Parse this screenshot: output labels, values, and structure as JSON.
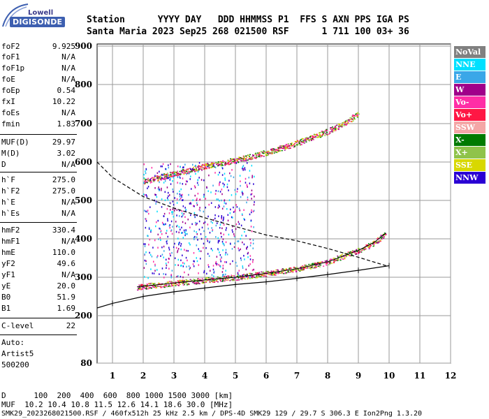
{
  "logo": {
    "brand": "Lowell",
    "product": "DIGISONDE"
  },
  "header": {
    "labels": "Station      YYYY DAY   DDD HHMMSS P1  FFS S AXN PPS IGA PS",
    "values": "Santa Maria 2023 Sep25 268 021500 RSF      1 711 100 03+ 36"
  },
  "params": [
    {
      "name": "foF2",
      "value": "9.925"
    },
    {
      "name": "foF1",
      "value": "N/A"
    },
    {
      "name": "foF1p",
      "value": "N/A"
    },
    {
      "name": "foE",
      "value": "N/A"
    },
    {
      "name": "foEp",
      "value": "0.54"
    },
    {
      "name": "fxI",
      "value": "10.22"
    },
    {
      "name": "foEs",
      "value": "N/A"
    },
    {
      "name": "fmin",
      "value": "1.83"
    },
    {
      "name": "MUF(D)",
      "value": "29.97"
    },
    {
      "name": "M(D)",
      "value": "3.02"
    },
    {
      "name": "D",
      "value": "N/A"
    },
    {
      "name": "h`F",
      "value": "275.0"
    },
    {
      "name": "h`F2",
      "value": "275.0"
    },
    {
      "name": "h`E",
      "value": "N/A"
    },
    {
      "name": "h`Es",
      "value": "N/A"
    },
    {
      "name": "hmF2",
      "value": "330.4"
    },
    {
      "name": "hmF1",
      "value": "N/A"
    },
    {
      "name": "hmE",
      "value": "110.0"
    },
    {
      "name": "yF2",
      "value": "49.6"
    },
    {
      "name": "yF1",
      "value": "N/A"
    },
    {
      "name": "yE",
      "value": "20.0"
    },
    {
      "name": "B0",
      "value": "51.9"
    },
    {
      "name": "B1",
      "value": "1.69"
    },
    {
      "name": "C-level",
      "value": "22"
    }
  ],
  "auto": {
    "line1": "Auto:",
    "line2": "Artist5",
    "line3": "500200"
  },
  "legend": [
    {
      "label": "NoVal",
      "color": "#808080"
    },
    {
      "label": "NNE",
      "color": "#00e0ff"
    },
    {
      "label": "E",
      "color": "#3aa7e8"
    },
    {
      "label": "W",
      "color": "#a0008a"
    },
    {
      "label": "Vo-",
      "color": "#ff2ea6"
    },
    {
      "label": "Vo+",
      "color": "#ff1744"
    },
    {
      "label": "SSW",
      "color": "#f4a6a6"
    },
    {
      "label": "X-",
      "color": "#007a00"
    },
    {
      "label": "X+",
      "color": "#8fc34a"
    },
    {
      "label": "SSE",
      "color": "#d8d800"
    },
    {
      "label": "NNW",
      "color": "#2a00d4"
    }
  ],
  "chart_data": {
    "type": "scatter",
    "title": "",
    "xlabel": "",
    "ylabel": "",
    "x_ticks": [
      "1",
      "2",
      "3",
      "4",
      "5",
      "6",
      "7",
      "8",
      "9",
      "10",
      "11",
      "12"
    ],
    "y_ticks": [
      "80",
      "200",
      "300",
      "400",
      "500",
      "600",
      "700",
      "800",
      "900"
    ],
    "xlim": [
      0.5,
      12
    ],
    "grid": true,
    "traces": [
      {
        "name": "F2 ordinary",
        "x": [
          1.8,
          3,
          4,
          5,
          6,
          7,
          8,
          8.5,
          9,
          9.5,
          9.9
        ],
        "y": [
          275,
          285,
          293,
          300,
          310,
          322,
          340,
          355,
          370,
          390,
          415
        ]
      },
      {
        "name": "F2 second hop",
        "x": [
          2,
          3,
          4,
          5,
          6,
          7,
          8,
          8.5,
          9
        ],
        "y": [
          550,
          570,
          590,
          605,
          625,
          650,
          680,
          700,
          725
        ]
      },
      {
        "name": "virtual height model",
        "x": [
          0.5,
          1,
          2,
          3,
          4,
          5,
          6,
          7,
          8,
          9,
          10
        ],
        "y": [
          220,
          232,
          250,
          262,
          272,
          281,
          288,
          297,
          307,
          318,
          330
        ]
      },
      {
        "name": "profile",
        "x": [
          0.5,
          1,
          2,
          3,
          4,
          5,
          6,
          7,
          8,
          9,
          9.9
        ],
        "y": [
          600,
          560,
          510,
          480,
          455,
          432,
          410,
          395,
          375,
          352,
          330
        ]
      }
    ]
  },
  "footer": {
    "d_line": "D      100  200  400  600  800 1000 1500 3000 [km]",
    "muf_line": "MUF  10.2 10.4 10.8 11.5 12.6 14.1 18.6 30.0 [MHz]",
    "file_line": "SMK29_2023268021500.RSF / 460fx512h 25 kHz 2.5 km / DPS-4D SMK29 129 / 29.7 S 306.3 E Ion2Png 1.3.20"
  }
}
